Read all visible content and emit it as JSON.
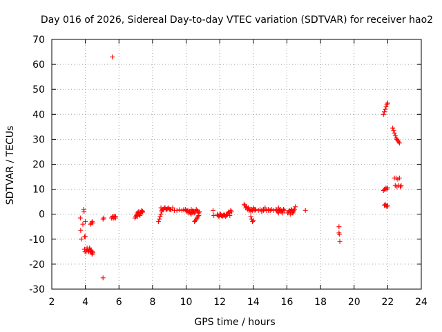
{
  "chart_data": {
    "type": "scatter",
    "title": "Day 016 of 2026, Sidereal Day-to-day VTEC variation (SDTVAR) for receiver hao2",
    "xlabel": "GPS time / hours",
    "ylabel": "SDTVAR / TECUs",
    "xlim": [
      2,
      24
    ],
    "ylim": [
      -30,
      70
    ],
    "xticks": [
      "2",
      "4",
      "6",
      "8",
      "10",
      "12",
      "14",
      "16",
      "18",
      "20",
      "22",
      "24"
    ],
    "yticks": [
      "-30",
      "-20",
      "-10",
      "0",
      "10",
      "20",
      "30",
      "40",
      "50",
      "60",
      "70"
    ],
    "grid": true,
    "marker": "+",
    "marker_color": "#ff0000",
    "series": [
      {
        "name": "SDTVAR",
        "x": [
          3.7,
          3.72,
          3.75,
          3.85,
          3.9,
          3.92,
          3.95,
          3.98,
          4.0,
          3.95,
          4.0,
          4.05,
          4.1,
          4.1,
          4.15,
          4.2,
          4.25,
          4.3,
          4.35,
          4.4,
          4.3,
          4.35,
          4.4,
          4.45,
          4.25,
          4.3,
          4.35,
          4.38,
          4.4,
          4.42,
          4.45,
          5.05,
          5.1,
          5.05,
          5.6,
          5.55,
          5.6,
          5.65,
          5.7,
          5.75,
          5.8,
          5.6,
          5.7,
          5.8,
          6.95,
          7.0,
          7.05,
          7.1,
          7.15,
          7.2,
          7.25,
          7.3,
          7.35,
          7.4,
          7.05,
          7.15,
          7.25,
          7.35,
          7.1,
          7.2,
          7.3,
          7.4,
          8.35,
          8.4,
          8.45,
          8.5,
          8.55,
          8.6,
          8.5,
          8.6,
          8.7,
          8.8,
          8.9,
          9.0,
          9.1,
          8.55,
          8.65,
          8.75,
          8.85,
          8.95,
          9.05,
          9.2,
          9.3,
          9.45,
          9.6,
          9.75,
          9.85,
          9.95,
          10.0,
          10.05,
          10.1,
          10.15,
          10.2,
          10.25,
          10.3,
          10.35,
          10.4,
          10.45,
          10.5,
          10.55,
          10.6,
          10.65,
          10.7,
          10.75,
          10.8,
          10.5,
          10.55,
          10.6,
          10.65,
          10.7,
          10.75,
          10.1,
          10.2,
          10.3,
          10.4,
          11.6,
          11.65,
          11.85,
          11.9,
          11.95,
          12.0,
          12.05,
          12.1,
          12.15,
          12.2,
          12.25,
          12.3,
          12.35,
          12.4,
          12.45,
          12.5,
          12.55,
          12.6,
          12.65,
          12.0,
          12.2,
          12.4,
          12.6,
          12.7,
          13.45,
          13.5,
          13.55,
          13.6,
          13.65,
          13.7,
          13.75,
          13.8,
          13.85,
          13.9,
          13.95,
          14.0,
          14.05,
          14.1,
          14.15,
          13.85,
          13.9,
          13.95,
          14.0,
          13.6,
          13.7,
          13.8,
          14.3,
          14.4,
          14.5,
          14.6,
          14.7,
          14.8,
          14.9,
          15.0,
          15.1,
          15.2,
          14.5,
          14.6,
          14.7,
          14.8,
          14.9,
          15.0,
          15.35,
          15.4,
          15.45,
          15.5,
          15.55,
          15.6,
          15.65,
          15.7,
          15.75,
          15.8,
          15.85,
          15.5,
          15.6,
          15.7,
          16.05,
          16.1,
          16.15,
          16.2,
          16.25,
          16.3,
          16.35,
          16.4,
          16.45,
          16.5,
          16.2,
          16.3,
          16.4,
          17.1,
          19.1,
          19.1,
          19.12,
          19.15,
          21.75,
          21.8,
          21.85,
          21.9,
          21.95,
          22.0,
          21.8,
          21.85,
          21.9,
          21.95,
          22.0,
          21.75,
          21.8,
          21.85,
          21.9,
          21.95,
          22.0,
          22.3,
          22.35,
          22.4,
          22.45,
          22.5,
          22.55,
          22.6,
          22.65,
          22.7,
          22.75,
          22.8,
          22.4,
          22.5,
          22.6,
          22.7,
          22.45,
          22.55,
          22.65,
          22.75
        ],
        "y": [
          -1.5,
          -6.5,
          -10,
          -4,
          2,
          1,
          -14,
          -15,
          -3,
          -9,
          -9,
          -15,
          -13.5,
          -14,
          -14.5,
          -15,
          -13.5,
          -15,
          -14.5,
          -15.5,
          -4,
          -3.5,
          -3,
          -3.5,
          -14,
          -14.5,
          -15,
          -15.5,
          -16,
          -15,
          -15.5,
          -2,
          -1.5,
          -25.5,
          63,
          -1.5,
          -1,
          -1.5,
          -0.8,
          -1,
          -1.5,
          -1,
          -1.5,
          -1,
          -1.5,
          -1,
          0,
          0.5,
          1,
          0,
          -0.5,
          0.5,
          1,
          1.2,
          -0.5,
          0.5,
          1,
          1.5,
          -1,
          0,
          0.5,
          0.8,
          -3,
          -2,
          -1,
          0,
          1,
          2,
          2.5,
          2,
          2.5,
          2,
          2.2,
          2,
          1.8,
          1.5,
          2,
          2.5,
          2,
          2.5,
          2,
          2.5,
          1.5,
          1.5,
          1.8,
          1.5,
          1.8,
          2,
          1.5,
          1,
          1.5,
          0.5,
          1,
          0.5,
          0,
          1,
          0.5,
          1,
          0.5,
          1,
          2,
          1.5,
          1,
          0.5,
          1,
          -3,
          -2.5,
          -2,
          -1.5,
          -1,
          -0.5,
          1.5,
          1,
          2,
          1.5,
          1.5,
          -0.5,
          0,
          -0.5,
          -1,
          -0.5,
          0,
          -0.5,
          -1,
          -0.5,
          0,
          -0.5,
          -1,
          -0.5,
          0,
          0.5,
          1,
          0.5,
          1.5,
          0,
          -0.5,
          0,
          -0.5,
          1,
          4,
          3.5,
          2.5,
          3,
          2,
          2.5,
          1.5,
          2,
          1,
          2,
          1.5,
          2.5,
          2,
          1.5,
          2,
          -1,
          -2,
          -3,
          -2.5,
          3,
          2.5,
          2,
          1.5,
          2,
          1.5,
          2,
          2.5,
          1.5,
          2,
          1.5,
          2,
          1.5,
          1,
          1.5,
          2,
          1.5,
          1.5,
          1.5,
          2,
          1.5,
          1,
          0.5,
          1.5,
          2,
          1,
          1.5,
          0.5,
          2,
          1.5,
          2.5,
          2,
          1.5,
          0.5,
          1,
          1.5,
          1,
          2,
          1.5,
          0.5,
          1,
          2,
          3,
          0,
          0.5,
          1.5,
          1.5,
          -5,
          -7.5,
          -8,
          -11,
          40,
          41,
          42,
          43,
          44,
          44.5,
          3.5,
          4,
          3.5,
          3,
          3.5,
          9.5,
          10,
          10,
          10.5,
          10,
          10.5,
          34.5,
          33.5,
          32.5,
          31.5,
          30.5,
          30,
          29.5,
          29,
          28.5,
          11,
          11.5,
          14.5,
          14.5,
          14,
          14.5,
          11.5,
          11,
          11.5,
          11
        ]
      }
    ]
  }
}
